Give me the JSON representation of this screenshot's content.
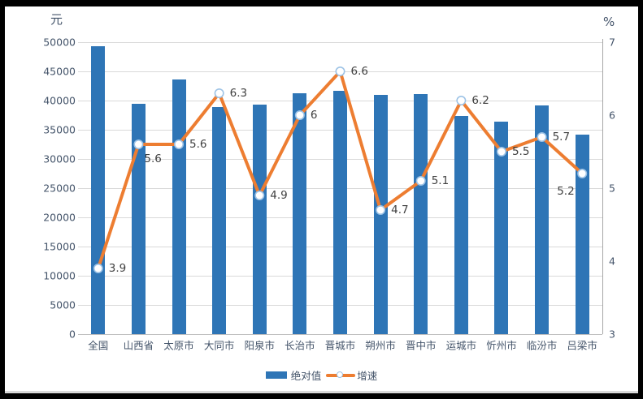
{
  "colors": {
    "bar": "#2e75b6",
    "line": "#ed7d31",
    "marker_fill": "#ffffff",
    "marker_stroke": "#9dc3e6",
    "gridline": "#d9d9d9",
    "axis_line": "#a6a6a6",
    "tick_text": "#44546a",
    "data_label_text": "#404040",
    "panel_background": "#ffffff",
    "frame_background": "#000000"
  },
  "chart_data": {
    "type": "bar",
    "subtype": "bar+line dual axis",
    "categories": [
      "全国",
      "山西省",
      "太原市",
      "大同市",
      "阳泉市",
      "长治市",
      "晋城市",
      "朔州市",
      "晋中市",
      "运城市",
      "忻州市",
      "临汾市",
      "吕梁市"
    ],
    "series": [
      {
        "name": "绝对值",
        "type": "bar",
        "axis": "left",
        "color": "#2e75b6",
        "values": [
          49300,
          39500,
          43600,
          38900,
          39300,
          41200,
          41600,
          41000,
          41100,
          37400,
          36400,
          39100,
          34100
        ]
      },
      {
        "name": "增速",
        "type": "line",
        "axis": "right",
        "color": "#ed7d31",
        "values": [
          3.9,
          5.6,
          5.6,
          6.3,
          4.9,
          6.0,
          6.6,
          4.7,
          5.1,
          6.2,
          5.5,
          5.7,
          5.2
        ],
        "labels": [
          "3.9",
          "5.6",
          "5.6",
          "6.3",
          "4.9",
          "6",
          "6.6",
          "4.7",
          "5.1",
          "6.2",
          "5.5",
          "5.7",
          "5.2"
        ]
      }
    ],
    "left_axis": {
      "unit": "元",
      "min": 0,
      "max": 50000,
      "step": 5000,
      "tick_labels": [
        "0",
        "5000",
        "10000",
        "15000",
        "20000",
        "25000",
        "30000",
        "35000",
        "40000",
        "45000",
        "50000"
      ]
    },
    "right_axis": {
      "unit": "%",
      "min": 3,
      "max": 7,
      "step": 1,
      "tick_labels": [
        "3",
        "4",
        "5",
        "6",
        "7"
      ]
    },
    "grid": true,
    "legend_position": "bottom-center",
    "label_offsets": {
      "default": [
        13,
        0
      ],
      "overrides": {
        "1": [
          7,
          18
        ],
        "12": [
          -31,
          22
        ]
      }
    }
  },
  "legend": {
    "bar_label": "绝对值",
    "line_label": "增速"
  }
}
